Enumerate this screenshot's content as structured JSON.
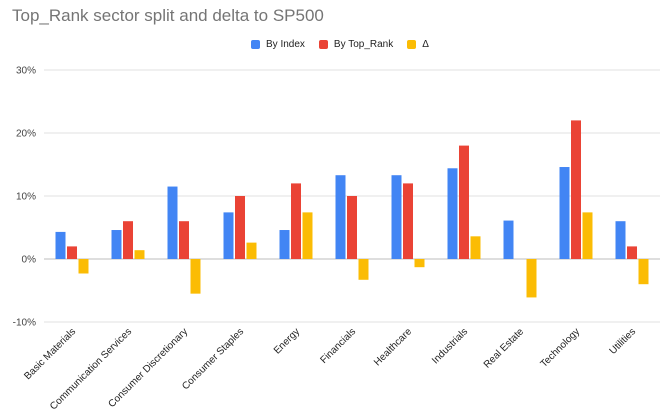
{
  "chart_data": {
    "type": "bar",
    "title": "Top_Rank sector split and delta to SP500",
    "categories": [
      "Basic Materials",
      "Communication Services",
      "Consumer Discretionary",
      "Consumer Staples",
      "Energy",
      "Financials",
      "Healthcare",
      "Industrials",
      "Real Estate",
      "Technology",
      "Utilities"
    ],
    "series": [
      {
        "name": "By Index",
        "color": "#4285f4",
        "values": [
          4.3,
          4.6,
          11.5,
          7.4,
          4.6,
          13.3,
          13.3,
          14.4,
          6.1,
          14.6,
          6.0
        ]
      },
      {
        "name": "By Top_Rank",
        "color": "#ea4335",
        "values": [
          2.0,
          6.0,
          6.0,
          10.0,
          12.0,
          10.0,
          12.0,
          18.0,
          0.0,
          22.0,
          2.0
        ]
      },
      {
        "name": "Δ",
        "color": "#fbbc04",
        "values": [
          -2.3,
          1.4,
          -5.5,
          2.6,
          7.4,
          -3.3,
          -1.3,
          3.6,
          -6.1,
          7.4,
          -4.0
        ]
      }
    ],
    "ylim": [
      -10,
      30
    ],
    "yticks": [
      "-10%",
      "0%",
      "10%",
      "20%",
      "30%"
    ],
    "ytick_values": [
      -10,
      0,
      10,
      20,
      30
    ],
    "legend_position": "top",
    "grid": true
  }
}
